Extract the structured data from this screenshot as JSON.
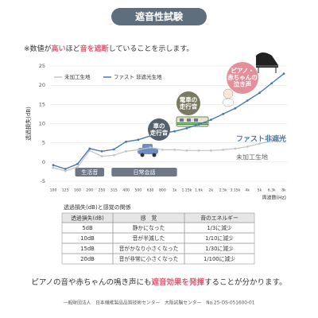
{
  "header": {
    "title": "遮音性試験"
  },
  "note": [
    {
      "text": "※数値が",
      "emphasis": false
    },
    {
      "text": "高い",
      "emphasis": true
    },
    {
      "text": "ほど",
      "emphasis": false
    },
    {
      "text": "音を遮断",
      "emphasis": true
    },
    {
      "text": "していることを示します。",
      "emphasis": false
    }
  ],
  "emphasis_color": "#e55a72",
  "chart_data": {
    "type": "line",
    "y_label": "透過損失(dB)",
    "x_label": "周波数(Hz)",
    "categories": [
      "100",
      "125",
      "160",
      "200",
      "250",
      "315",
      "400",
      "500",
      "630",
      "800",
      "1k",
      "1.25k",
      "1.6k",
      "2k",
      "2.5k",
      "3.15k",
      "4k",
      "5k",
      "6.3k",
      "8k"
    ],
    "series": [
      {
        "name": "未加工生地",
        "color": "#c4c4c4",
        "values": [
          -1.5,
          -2.3,
          -1.3,
          3.0,
          1.5,
          1.8,
          2.8,
          3.2,
          3.8,
          3.2,
          3.2,
          3.0,
          3.0,
          3.0,
          3.2,
          3.5,
          4.0,
          4.8,
          5.5,
          6.5
        ]
      },
      {
        "name": "ファスト 非遮光生地",
        "color": "#4a78b0",
        "values": [
          -0.8,
          -1.8,
          -0.5,
          3.5,
          2.8,
          3.3,
          5.3,
          5.8,
          6.8,
          7.5,
          8.0,
          8.8,
          9.8,
          11.0,
          12.5,
          14.0,
          16.0,
          18.0,
          20.5,
          23.0
        ]
      }
    ],
    "ylim": [
      -5,
      25
    ],
    "yticks": [
      -5,
      0,
      5,
      10,
      15,
      20,
      25
    ],
    "grid": true,
    "line_labels": [
      "未加工生地",
      "ファスト非遮光"
    ],
    "bands": [
      {
        "label": "生活音",
        "from": 2,
        "to": 4
      },
      {
        "label": "日常会話",
        "from": 5,
        "to": 10
      }
    ],
    "bubbles": [
      {
        "lines": [
          "車の",
          "走行音"
        ],
        "color": "#55606c"
      },
      {
        "lines": [
          "電車の",
          "走行音"
        ],
        "color": "#7a7a62"
      },
      {
        "lines": [
          "ピアノ・",
          "赤ちゃんの",
          "泣き声"
        ],
        "color": "#e4909b"
      }
    ]
  },
  "table": {
    "title": "透過損失(dB)と感覚の関係",
    "header": [
      "透過損失(dB)",
      "感　覚",
      "音のエネルギー"
    ],
    "rows": [
      [
        "5dB",
        "静かになった",
        "1/3に減少"
      ],
      [
        "10dB",
        "音が半減した",
        "1/10に減少"
      ],
      [
        "15dB",
        "音がかなり小さくなった",
        "1/30に減少"
      ],
      [
        "20dB",
        "音が非常に小さくなった",
        "1/100に減少"
      ]
    ]
  },
  "conclusion": [
    {
      "text": "ピアノの音や赤ちゃんの鳴き声にも",
      "emphasis": false
    },
    {
      "text": "遮音効果を発揮",
      "emphasis": true
    },
    {
      "text": "することが分かります。",
      "emphasis": false
    }
  ],
  "footer": "一般財団法人　日本繊維製品品質技術センター　大阪試験センター　No.25-OS-051600-01"
}
